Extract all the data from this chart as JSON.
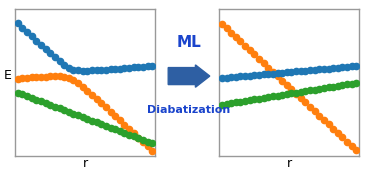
{
  "blue_color": "#1f77b4",
  "orange_color": "#ff7f0e",
  "green_color": "#2ca02c",
  "arrow_color": "#2e5fa3",
  "text_color": "#1a44cc",
  "box_edge_color": "#999999",
  "ml_text": "ML",
  "diabatization_text": "Diabatization",
  "xlabel": "r",
  "ylabel": "E",
  "n_points": 30,
  "figsize": [
    3.78,
    1.79
  ],
  "dpi": 100,
  "ms": 4.5
}
